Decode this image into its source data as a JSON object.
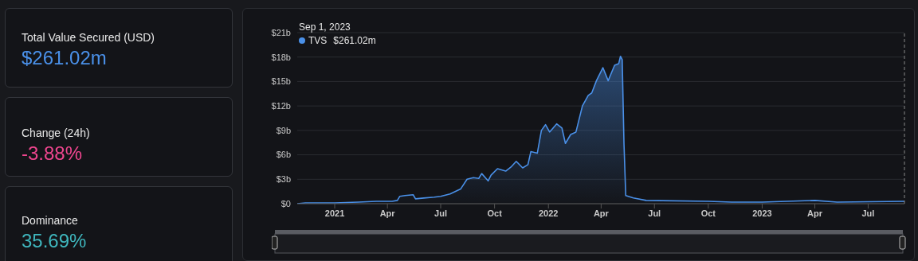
{
  "chart_data": [
    {
      "type": "other",
      "annotations": [
        "Total Value Secured (USD)",
        "$261.02m",
        "Change (24h)",
        "-3.88%",
        "Dominance",
        "35.69%"
      ]
    },
    {
      "type": "area",
      "legend": "top left",
      "grid": "y",
      "line_style": "solid",
      "marker": "none",
      "xlim": [
        "2020-10-29",
        "2023-09-01"
      ],
      "xticks": [
        {
          "value": "2021-01-01",
          "label": "2021"
        },
        {
          "value": "2021-04-01",
          "label": "Apr"
        },
        {
          "value": "2021-07-01",
          "label": "Jul"
        },
        {
          "value": "2021-10-01",
          "label": "Oct"
        },
        {
          "value": "2022-01-01",
          "label": "2022"
        },
        {
          "value": "2022-04-01",
          "label": "Apr"
        },
        {
          "value": "2022-07-01",
          "label": "Jul"
        },
        {
          "value": "2022-10-01",
          "label": "Oct"
        },
        {
          "value": "2023-01-01",
          "label": "2023"
        },
        {
          "value": "2023-04-01",
          "label": "Apr"
        },
        {
          "value": "2023-07-01",
          "label": "Jul"
        }
      ],
      "ylim": [
        0,
        21
      ],
      "yticks": [
        {
          "value": 0,
          "label": "$0"
        },
        {
          "value": 3,
          "label": "$3b"
        },
        {
          "value": 6,
          "label": "$6b"
        },
        {
          "value": 9,
          "label": "$9b"
        },
        {
          "value": 12,
          "label": "$12b"
        },
        {
          "value": 15,
          "label": "$15b"
        },
        {
          "value": 18,
          "label": "$18b"
        },
        {
          "value": 21,
          "label": "$21b"
        }
      ],
      "ref_lines": [
        {
          "axis": "x",
          "value": "2023-09-01",
          "color": "#888888",
          "line_style": "dashed"
        }
      ],
      "annotations": [
        "Sep 1, 2023",
        "$261.02m"
      ],
      "x": [
        "2020-10-29",
        "2020-11-12",
        "2021-01-01",
        "2021-02-10",
        "2021-03-13",
        "2021-04-09",
        "2021-04-18",
        "2021-04-22",
        "2021-05-01",
        "2021-05-15",
        "2021-05-19",
        "2021-06-02",
        "2021-06-20",
        "2021-07-01",
        "2021-07-17",
        "2021-08-04",
        "2021-08-15",
        "2021-08-26",
        "2021-09-04",
        "2021-09-09",
        "2021-09-20",
        "2021-09-25",
        "2021-10-06",
        "2021-10-20",
        "2021-10-29",
        "2021-11-07",
        "2021-11-18",
        "2021-11-27",
        "2021-12-02",
        "2021-12-13",
        "2021-12-20",
        "2021-12-27",
        "2022-01-03",
        "2022-01-15",
        "2022-01-24",
        "2022-01-30",
        "2022-02-08",
        "2022-02-17",
        "2022-02-28",
        "2022-03-10",
        "2022-03-16",
        "2022-03-24",
        "2022-04-04",
        "2022-04-13",
        "2022-04-24",
        "2022-05-01",
        "2022-05-04",
        "2022-05-07",
        "2022-05-10",
        "2022-05-13",
        "2022-05-26",
        "2022-06-17",
        "2022-10-01",
        "2022-11-10",
        "2023-01-01",
        "2023-04-01",
        "2023-05-09",
        "2023-09-01"
      ],
      "series": [
        {
          "name": "TVS",
          "color": "#4a90e8",
          "values": [
            0.0,
            0.1,
            0.1,
            0.2,
            0.3,
            0.3,
            0.4,
            0.9,
            1.0,
            1.1,
            0.6,
            0.7,
            0.8,
            0.9,
            1.2,
            1.8,
            3.0,
            3.2,
            3.1,
            3.7,
            2.8,
            3.5,
            4.3,
            4.0,
            4.5,
            5.2,
            4.4,
            4.8,
            6.4,
            6.2,
            9.0,
            9.7,
            8.8,
            9.8,
            9.3,
            7.4,
            8.5,
            8.8,
            12.0,
            13.3,
            13.6,
            15.1,
            16.7,
            15.1,
            17.0,
            17.2,
            18.1,
            17.7,
            7.4,
            1.0,
            0.7,
            0.4,
            0.3,
            0.2,
            0.2,
            0.4,
            0.2,
            0.3
          ]
        }
      ]
    }
  ]
}
